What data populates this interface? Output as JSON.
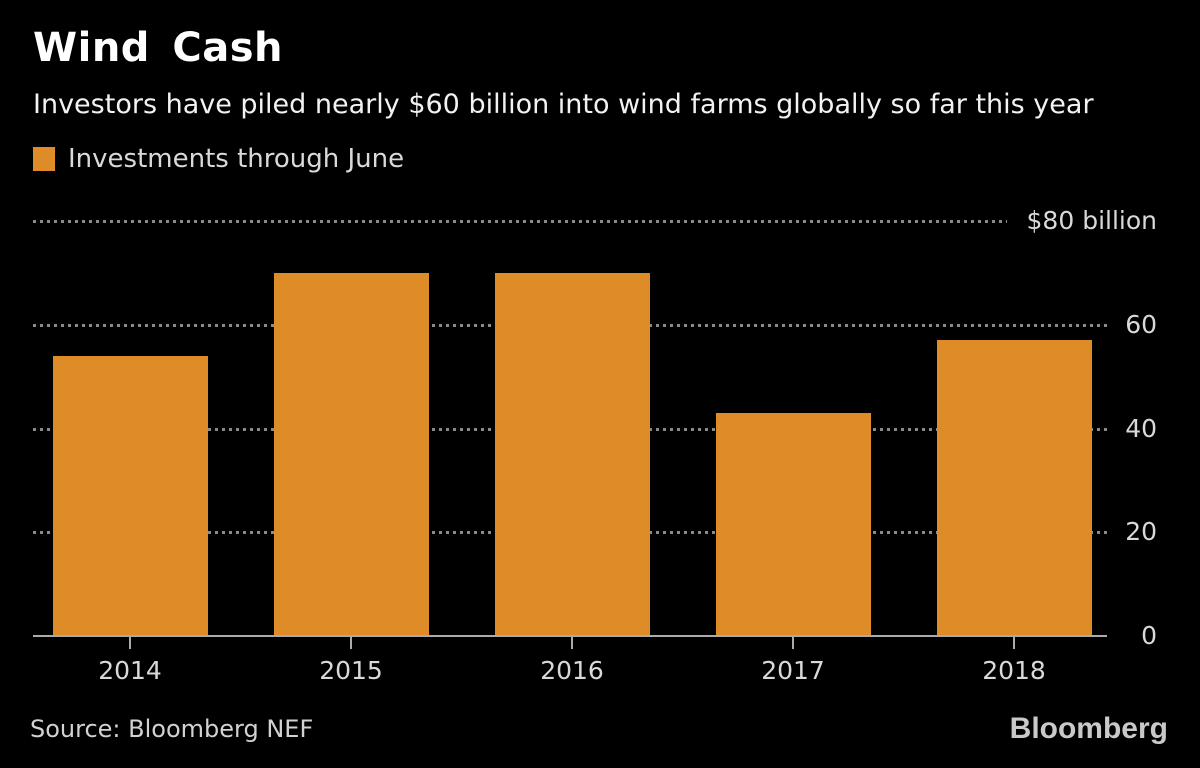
{
  "header": {
    "title": "Wind Cash",
    "subtitle": "Investors have piled nearly $60 billion into wind farms globally so far this year",
    "legend": {
      "label": "Investments through June"
    }
  },
  "footer": {
    "source": "Source: Bloomberg NEF",
    "brand": "Bloomberg"
  },
  "colors": {
    "background": "#000000",
    "bar": "#de8c28",
    "title_text": "#ffffff",
    "subtitle_text": "#f2f2f2",
    "axis_text": "#d9d9d9",
    "gridline": "#8a8a8a",
    "axis_line": "#ababab",
    "source_text": "#d2d2d2",
    "logo_text": "#c9c9c9"
  },
  "chart_data": {
    "type": "bar",
    "title": "Wind Cash",
    "subtitle": "Investors have piled nearly $60 billion into wind farms globally so far this year",
    "categories": [
      "2014",
      "2015",
      "2016",
      "2017",
      "2018"
    ],
    "series": [
      {
        "name": "Investments through June",
        "values": [
          54,
          70,
          70,
          43,
          57
        ]
      }
    ],
    "unit": "billion USD",
    "ylim": [
      0,
      80
    ],
    "yticks": [
      {
        "value": 80,
        "label": "$80 billion"
      },
      {
        "value": 60,
        "label": "60"
      },
      {
        "value": 40,
        "label": "40"
      },
      {
        "value": 20,
        "label": "20"
      },
      {
        "value": 0,
        "label": "0"
      }
    ],
    "grid": "horizontal-dotted",
    "legend_position": "top-left",
    "value_axis_side": "right",
    "source": "Source: Bloomberg NEF"
  }
}
